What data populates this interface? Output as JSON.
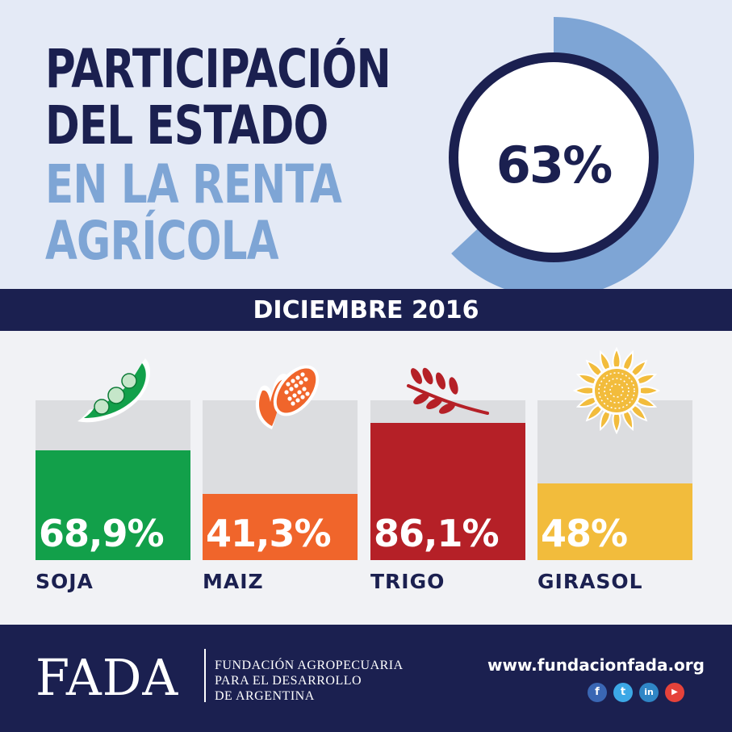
{
  "header": {
    "title_lines": [
      "PARTICIPACIÓN",
      "DEL ESTADO",
      "EN LA RENTA",
      "AGRÍCOLA"
    ],
    "headline_value": "63%",
    "headline_fraction": 0.63,
    "date": "DICIEMBRE 2016"
  },
  "chart_data": {
    "type": "bar",
    "categories": [
      "SOJA",
      "MAIZ",
      "TRIGO",
      "GIRASOL"
    ],
    "values": [
      68.9,
      41.3,
      86.1,
      48
    ],
    "value_labels": [
      "68,9%",
      "41,3%",
      "86,1%",
      "48%"
    ],
    "ylim": [
      0,
      100
    ],
    "colors": [
      "#12a04a",
      "#f0652b",
      "#b52027",
      "#f2bc3c"
    ],
    "icons": [
      "soy-pod-icon",
      "corn-cob-icon",
      "wheat-ear-icon",
      "sunflower-icon"
    ],
    "grid": false
  },
  "footer": {
    "logo": "FADA",
    "org_lines": [
      "FUNDACIÓN AGROPECUARIA",
      "PARA EL DESARROLLO",
      "DE ARGENTINA"
    ],
    "website": "www.fundacionfada.org",
    "social": [
      {
        "icon": "facebook-icon",
        "glyph": "f",
        "color": "#3a67b4"
      },
      {
        "icon": "twitter-icon",
        "glyph": "t",
        "color": "#3ca8e6"
      },
      {
        "icon": "linkedin-icon",
        "glyph": "in",
        "color": "#2f86c6"
      },
      {
        "icon": "youtube-icon",
        "glyph": "▶",
        "color": "#e5423a"
      }
    ]
  },
  "colors": {
    "navy": "#1b2050",
    "light_blue": "#7ea5d5",
    "header_bg": "#e4eaf6"
  }
}
